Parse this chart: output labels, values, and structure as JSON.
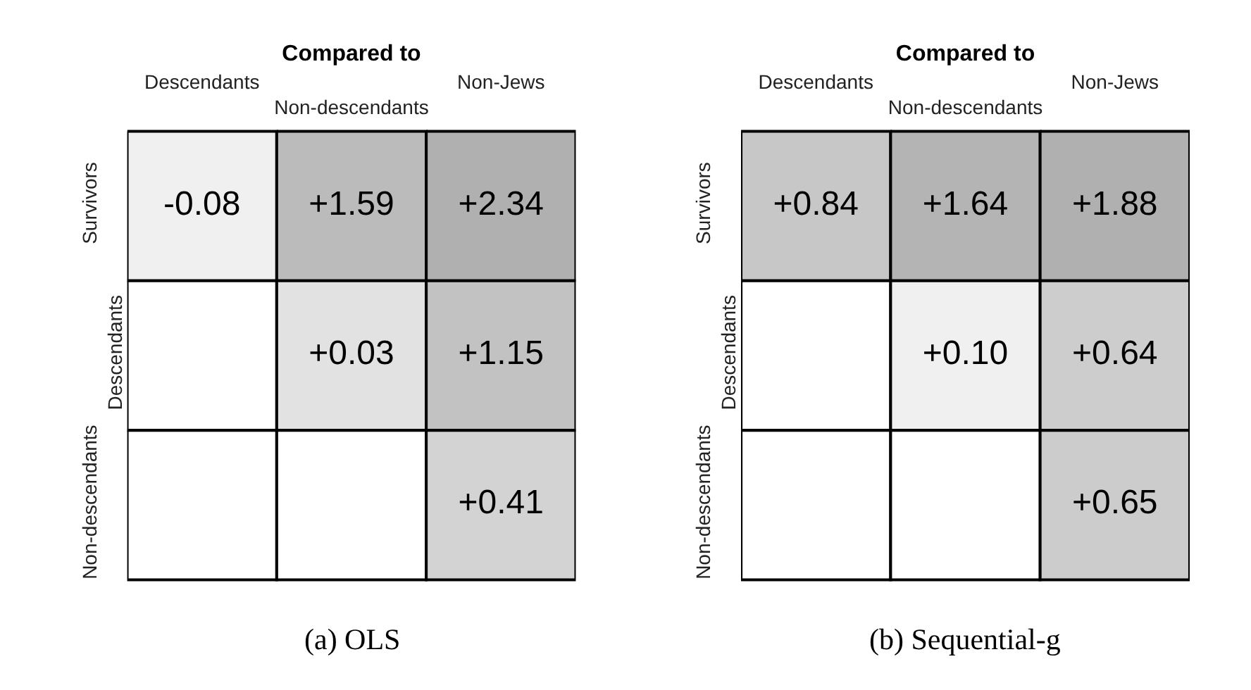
{
  "chart_data": [
    {
      "type": "heatmap",
      "title": "(a) OLS",
      "xlabel": "Compared to",
      "categories": [
        "Descendants",
        "Non-descendants",
        "Non-Jews"
      ],
      "y_categories": [
        "Survivors",
        "Descendants",
        "Non-descendants"
      ],
      "cells": [
        [
          -0.08,
          1.59,
          2.34
        ],
        [
          null,
          0.03,
          1.15
        ],
        [
          null,
          null,
          0.41
        ]
      ],
      "cell_labels": [
        [
          "-0.08",
          "+1.59",
          "+2.34"
        ],
        [
          null,
          "+0.03",
          "+1.15"
        ],
        [
          null,
          null,
          "+0.41"
        ]
      ]
    },
    {
      "type": "heatmap",
      "title": "(b) Sequential-g",
      "xlabel": "Compared to",
      "categories": [
        "Descendants",
        "Non-descendants",
        "Non-Jews"
      ],
      "y_categories": [
        "Survivors",
        "Descendants",
        "Non-descendants"
      ],
      "cells": [
        [
          0.84,
          1.64,
          1.88
        ],
        [
          null,
          0.1,
          0.64
        ],
        [
          null,
          null,
          0.65
        ]
      ],
      "cell_labels": [
        [
          "+0.84",
          "+1.64",
          "+1.88"
        ],
        [
          null,
          "+0.10",
          "+0.64"
        ],
        [
          null,
          null,
          "+0.65"
        ]
      ]
    }
  ]
}
